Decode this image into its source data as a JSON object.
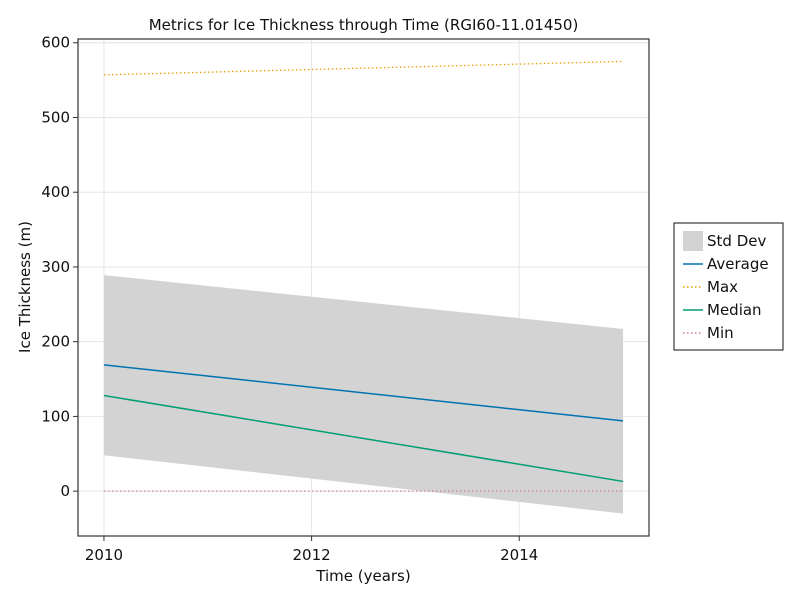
{
  "chart_data": {
    "type": "line",
    "title": "Metrics for Ice Thickness through Time (RGI60-11.01450)",
    "xlabel": "Time (years)",
    "ylabel": "Ice Thickness (m)",
    "xlim": [
      2009.75,
      2015.25
    ],
    "ylim": [
      -60,
      605
    ],
    "xticks": [
      2010,
      2012,
      2014
    ],
    "yticks": [
      0,
      100,
      200,
      300,
      400,
      500,
      600
    ],
    "grid": true,
    "legend_position": "right",
    "x": [
      2010,
      2015
    ],
    "band": {
      "name": "Std Dev",
      "lower": [
        48,
        -30
      ],
      "upper": [
        289,
        217
      ],
      "color": "#d3d3d3"
    },
    "series": [
      {
        "name": "Average",
        "values": [
          169,
          94
        ],
        "color": "#0072b2",
        "style": "solid"
      },
      {
        "name": "Max",
        "values": [
          557,
          575
        ],
        "color": "#e69f00",
        "style": "dotted"
      },
      {
        "name": "Median",
        "values": [
          128,
          13
        ],
        "color": "#009e73",
        "style": "solid"
      },
      {
        "name": "Min",
        "values": [
          0,
          0
        ],
        "color": "#cc79a7",
        "style": "dotted"
      }
    ]
  }
}
